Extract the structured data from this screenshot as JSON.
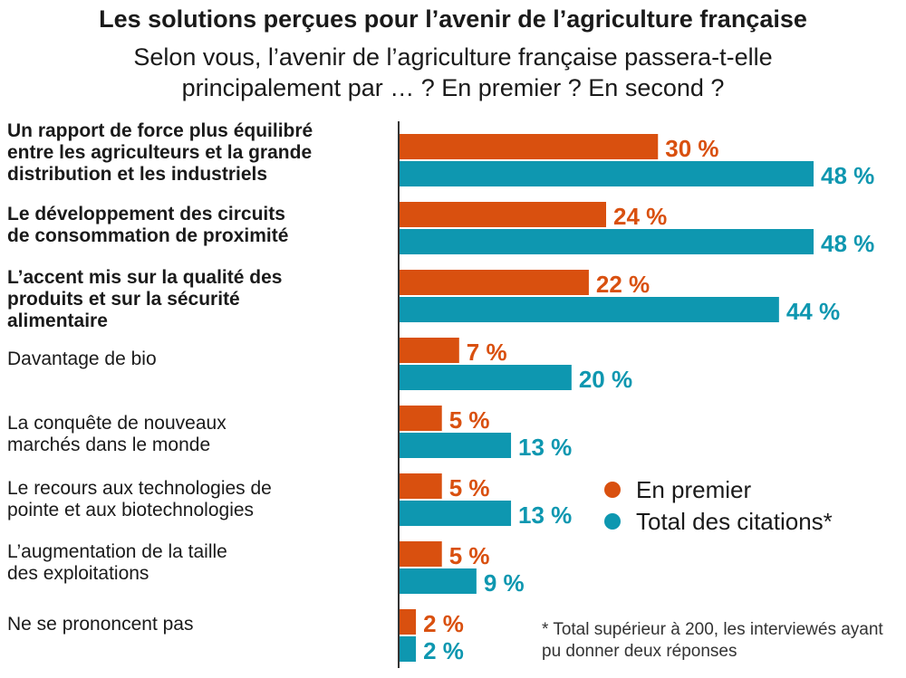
{
  "header": {
    "title": "Les solutions perçues pour l’avenir de l’agriculture française",
    "subtitle": "Selon vous, l’avenir de l’agriculture française passera-t-elle principalement par … ? En premier ? En second ?"
  },
  "footnote": "* Total supérieur à 200, les interviewés ayant pu donner deux réponses",
  "colors": {
    "premier": "#d9500f",
    "total": "#0e97b0",
    "axis": "#333333"
  },
  "chart_data": {
    "type": "bar",
    "orientation": "horizontal",
    "title": "Les solutions perçues pour l’avenir de l’agriculture française",
    "subtitle": "Selon vous, l’avenir de l’agriculture française passera-t-elle principalement par … ? En premier ? En second ?",
    "categories": [
      "Un rapport de force plus équilibré entre les agriculteurs et la grande distribution et les industriels",
      "Le développement des circuits de consommation de proximité",
      "L’accent mis sur la qualité des produits et sur la sécurité alimentaire",
      "Davantage de bio",
      "La conquête de nouveaux marchés dans le monde",
      "Le recours aux technologies de pointe et aux biotechnologies",
      "L’augmentation de la taille des exploitations",
      "Ne se prononcent pas"
    ],
    "category_lines": [
      [
        "Un rapport de force plus équilibré",
        "entre les agriculteurs et la grande",
        "distribution et les industriels"
      ],
      [
        "Le développement des circuits",
        "de consommation de proximité"
      ],
      [
        "L’accent mis sur la qualité des",
        "produits et sur la sécurité",
        "alimentaire"
      ],
      [
        "Davantage de bio"
      ],
      [
        "La conquête de nouveaux",
        "marchés dans le monde"
      ],
      [
        "Le recours aux technologies de",
        "pointe et aux biotechnologies"
      ],
      [
        "L’augmentation de la taille",
        "des exploitations"
      ],
      [
        "Ne se prononcent pas"
      ]
    ],
    "bold_categories": [
      true,
      true,
      true,
      false,
      false,
      false,
      false,
      false
    ],
    "series": [
      {
        "name": "En premier",
        "values": [
          30,
          24,
          22,
          7,
          5,
          5,
          5,
          2
        ],
        "labels": [
          "30 %",
          "24 %",
          "22 %",
          "7 %",
          "5 %",
          "5 %",
          "5 %",
          "2 %"
        ]
      },
      {
        "name": "Total des citations*",
        "values": [
          48,
          48,
          44,
          20,
          13,
          13,
          9,
          2
        ],
        "labels": [
          "48 %",
          "48 %",
          "44 %",
          "20 %",
          "13 %",
          "13 %",
          "9 %",
          "2 %"
        ]
      }
    ],
    "unit": "%",
    "xlim": [
      0,
      48
    ],
    "legend": [
      "En premier",
      "Total des citations*"
    ],
    "legend_position": "center-right"
  }
}
